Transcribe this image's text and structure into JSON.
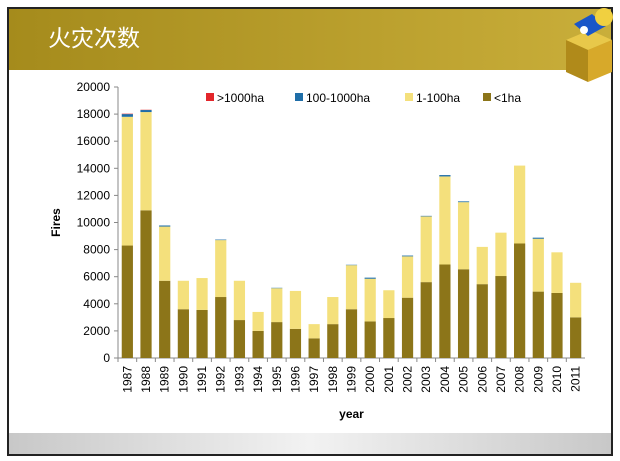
{
  "header": {
    "title": "火灾次数"
  },
  "chart_data": {
    "type": "stacked-bar",
    "categories": [
      "1987",
      "1988",
      "1989",
      "1990",
      "1991",
      "1992",
      "1993",
      "1994",
      "1995",
      "1996",
      "1997",
      "1998",
      "1999",
      "2000",
      "2001",
      "2002",
      "2003",
      "2004",
      "2005",
      "2006",
      "2007",
      "2008",
      "2009",
      "2010",
      "2011"
    ],
    "series": [
      {
        "name": "<1ha",
        "color": "#8c7519",
        "values": [
          8300,
          10900,
          5700,
          3600,
          3550,
          4500,
          2800,
          2000,
          2650,
          2150,
          1450,
          2500,
          3600,
          2700,
          2950,
          4450,
          5600,
          6900,
          6550,
          5450,
          6050,
          8450,
          4900,
          4800,
          3000
        ]
      },
      {
        "name": "1-100ha",
        "color": "#f4e07c",
        "values": [
          9500,
          7250,
          4000,
          2100,
          2350,
          4200,
          2900,
          1400,
          2500,
          2800,
          1050,
          2000,
          3250,
          3150,
          2050,
          3050,
          4850,
          6500,
          4950,
          2750,
          3200,
          5750,
          3900,
          3000,
          2550
        ]
      },
      {
        "name": "100-1000ha",
        "color": "#1f6ea8",
        "values": [
          200,
          150,
          80,
          0,
          0,
          40,
          0,
          0,
          30,
          0,
          0,
          0,
          30,
          80,
          0,
          60,
          40,
          100,
          60,
          0,
          0,
          0,
          80,
          0,
          0
        ]
      },
      {
        "name": ">1000ha",
        "color": "#e3262b",
        "values": [
          30,
          20,
          0,
          0,
          0,
          0,
          0,
          0,
          0,
          0,
          0,
          0,
          0,
          0,
          0,
          0,
          0,
          0,
          0,
          0,
          0,
          0,
          0,
          0,
          0
        ]
      }
    ],
    "legend_order": [
      3,
      2,
      1,
      0
    ],
    "y_label": "Fires",
    "x_label": "year",
    "ylim": [
      0,
      20000
    ],
    "yticks": [
      0,
      2000,
      4000,
      6000,
      8000,
      10000,
      12000,
      14000,
      16000,
      18000,
      20000
    ]
  }
}
